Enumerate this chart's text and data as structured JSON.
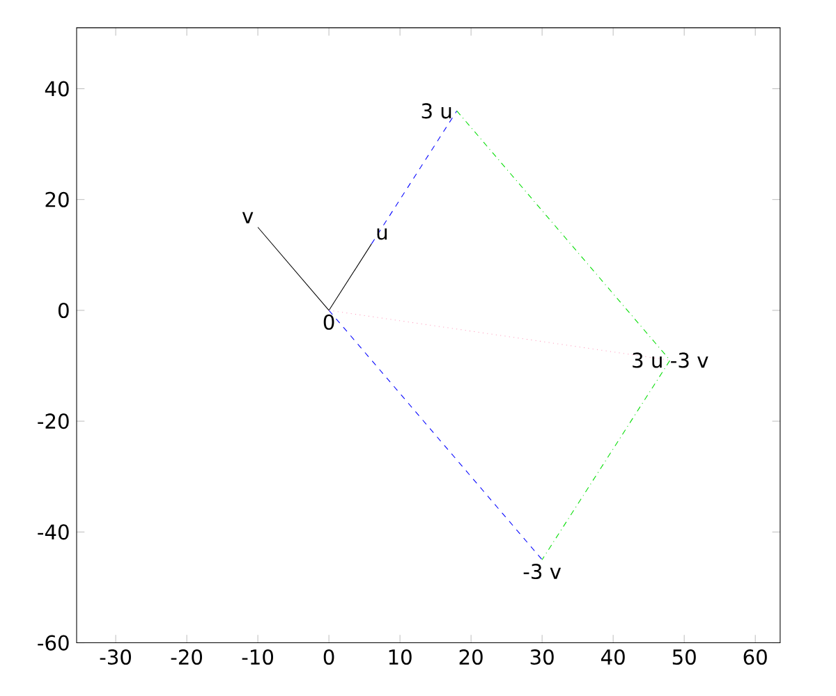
{
  "chart_data": {
    "type": "line",
    "xlim": [
      -35.5,
      63.5
    ],
    "ylim": [
      -60,
      51
    ],
    "xticks": [
      -30,
      -20,
      -10,
      0,
      10,
      20,
      30,
      40,
      50,
      60
    ],
    "yticks": [
      -60,
      -40,
      -20,
      0,
      20,
      40
    ],
    "grid": false,
    "marker": "none",
    "series": [
      {
        "color": "#000000",
        "line_style": "solid",
        "x": [
          0,
          6
        ],
        "values": [
          0,
          12
        ]
      },
      {
        "color": "#000000",
        "line_style": "solid",
        "x": [
          0,
          -10
        ],
        "values": [
          0,
          15
        ]
      },
      {
        "color": "#0000ff",
        "line_style": "dashed",
        "x": [
          6,
          18
        ],
        "values": [
          12,
          36
        ]
      },
      {
        "color": "#0000ff",
        "line_style": "dashed",
        "x": [
          0,
          30
        ],
        "values": [
          0,
          -45
        ]
      },
      {
        "color": "#00dd00",
        "line_style": "dashdot",
        "x": [
          18,
          48,
          30
        ],
        "values": [
          36,
          -9,
          -45
        ]
      },
      {
        "color": "#ff99bb",
        "line_style": "dotted",
        "x": [
          0,
          48
        ],
        "values": [
          0,
          -9
        ]
      }
    ],
    "annotations": [
      {
        "text": "0",
        "x": 0,
        "y": 0
      },
      {
        "text": "u",
        "x": 6,
        "y": 12
      },
      {
        "text": "v",
        "x": -10,
        "y": 15
      },
      {
        "text": "3 u",
        "x": 18,
        "y": 36
      },
      {
        "text": "-3 v",
        "x": 30,
        "y": -45
      },
      {
        "text": "3 u -3 v",
        "x": 48,
        "y": -9
      }
    ]
  }
}
